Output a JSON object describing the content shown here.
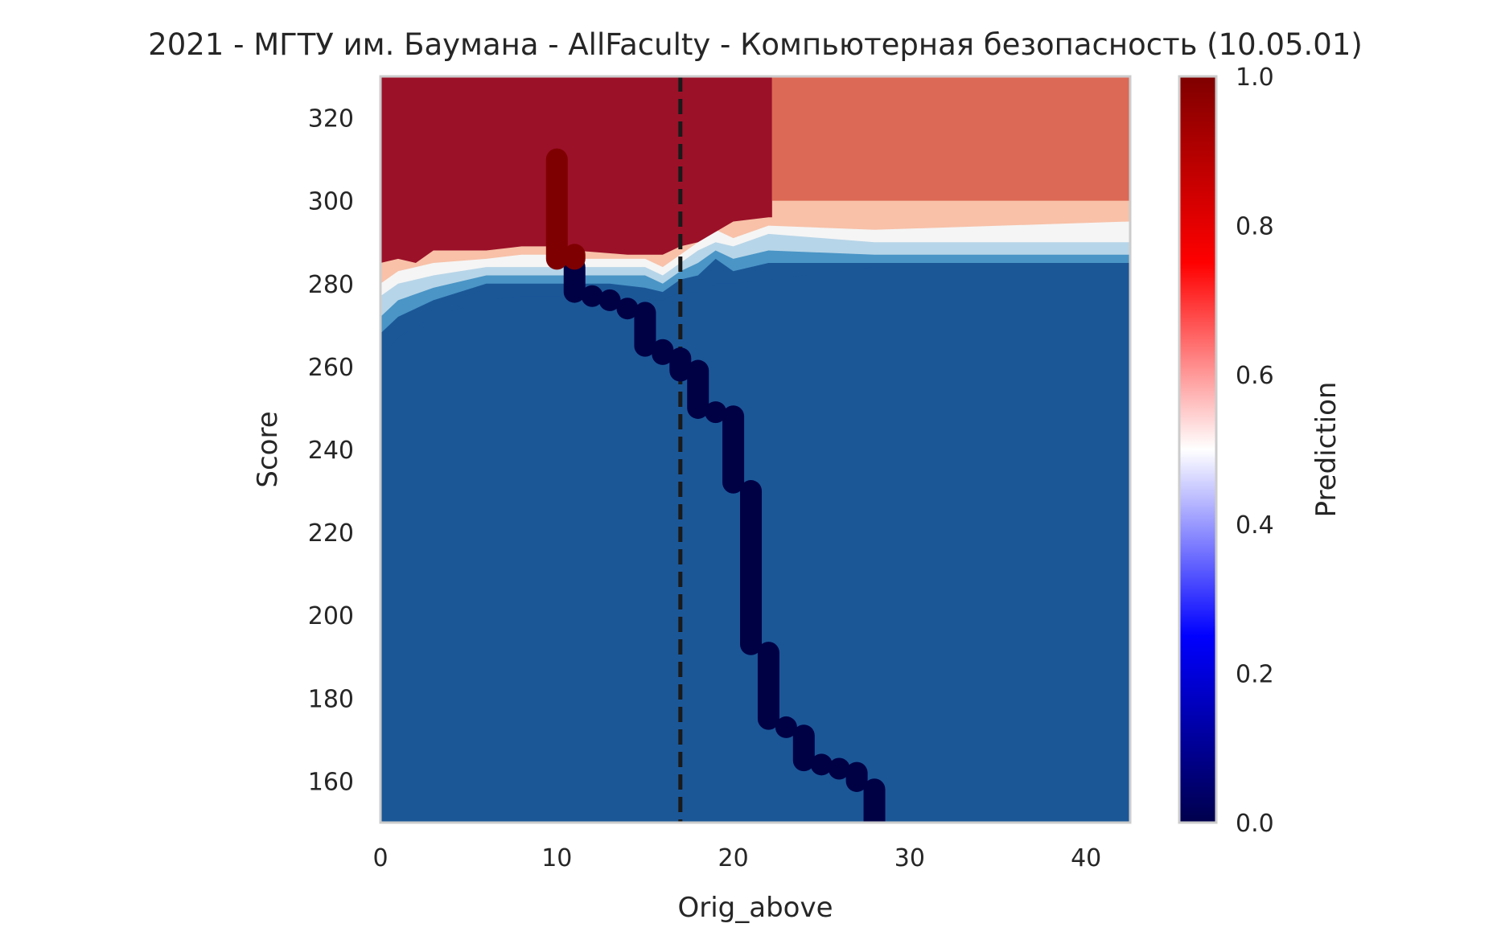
{
  "chart_data": {
    "type": "heatmap",
    "title": "2021 - МГТУ им. Баумана - AllFaculty - Компьютерная безопасность (10.05.01)",
    "xlabel": "Orig_above",
    "ylabel": "Score",
    "colorbar_label": "Prediction",
    "xlim": [
      0,
      42.5
    ],
    "ylim": [
      150,
      330
    ],
    "x_ticks": [
      0,
      10,
      20,
      30,
      40
    ],
    "y_ticks": [
      160,
      180,
      200,
      220,
      240,
      260,
      280,
      300,
      320
    ],
    "colorbar_ticks": [
      "0.0",
      "0.2",
      "0.4",
      "0.6",
      "0.8",
      "1.0"
    ],
    "colorbar_range": [
      0,
      1
    ],
    "grid": false,
    "dashed_line_x": 17,
    "colors": {
      "high": "#9b1128",
      "mid_high": "#dc6955",
      "light_red": "#f8c1a8",
      "white": "#f5f5f5",
      "light_blue": "#b7d5e8",
      "mid_blue": "#4a95c6",
      "low": "#1b5797",
      "point_admitted": "#7f0000",
      "point_rejected": "#000045"
    },
    "regions": [
      {
        "level": 0.95,
        "boundary": [
          [
            0,
            285
          ],
          [
            1,
            286
          ],
          [
            2,
            285
          ],
          [
            3,
            288
          ],
          [
            6,
            288
          ],
          [
            8,
            289
          ],
          [
            10,
            289
          ],
          [
            11,
            288
          ],
          [
            14,
            287
          ],
          [
            16,
            287
          ],
          [
            17,
            289
          ],
          [
            18,
            290
          ],
          [
            20,
            295
          ],
          [
            22,
            296
          ],
          [
            22.2,
            296
          ]
        ]
      },
      {
        "level": 0.8,
        "boundary": [
          [
            22.2,
            300
          ],
          [
            42.5,
            300
          ]
        ]
      },
      {
        "level": 0.65,
        "boundary": [
          [
            0,
            280
          ],
          [
            1,
            283
          ],
          [
            3,
            285
          ],
          [
            6,
            286
          ],
          [
            8,
            287
          ],
          [
            10,
            287
          ],
          [
            11,
            286
          ],
          [
            13,
            286
          ],
          [
            15,
            286
          ],
          [
            16,
            284
          ],
          [
            17,
            287
          ],
          [
            18,
            290
          ],
          [
            19,
            293
          ],
          [
            20,
            291
          ],
          [
            22,
            294
          ],
          [
            28,
            293
          ],
          [
            42.5,
            295
          ]
        ]
      },
      {
        "level": 0.55,
        "boundary": [
          [
            0,
            277
          ],
          [
            1,
            280
          ],
          [
            3,
            282
          ],
          [
            6,
            284
          ],
          [
            8,
            284
          ],
          [
            10,
            284
          ],
          [
            11,
            284
          ],
          [
            13,
            284
          ],
          [
            15,
            284
          ],
          [
            16,
            282
          ],
          [
            17,
            285
          ],
          [
            18,
            288
          ],
          [
            19,
            290
          ],
          [
            20,
            289
          ],
          [
            22,
            292
          ],
          [
            28,
            290
          ],
          [
            42.5,
            290
          ]
        ]
      },
      {
        "level": 0.45,
        "boundary": [
          [
            0,
            272
          ],
          [
            1,
            276
          ],
          [
            3,
            279
          ],
          [
            6,
            282
          ],
          [
            8,
            282
          ],
          [
            10,
            282
          ],
          [
            11,
            282
          ],
          [
            13,
            282
          ],
          [
            15,
            282
          ],
          [
            16,
            280
          ],
          [
            17,
            283
          ],
          [
            18,
            285
          ],
          [
            19,
            288
          ],
          [
            20,
            286
          ],
          [
            22,
            288
          ],
          [
            28,
            287
          ],
          [
            42.5,
            287
          ]
        ]
      },
      {
        "level": 0.35,
        "boundary": [
          [
            0,
            268
          ],
          [
            1,
            272
          ],
          [
            3,
            276
          ],
          [
            6,
            280
          ],
          [
            8,
            280
          ],
          [
            10,
            280
          ],
          [
            11,
            280
          ],
          [
            13,
            280
          ],
          [
            15,
            279
          ],
          [
            16,
            278
          ],
          [
            17,
            281
          ],
          [
            18,
            282
          ],
          [
            19,
            286
          ],
          [
            20,
            283
          ],
          [
            22,
            285
          ],
          [
            28,
            285
          ],
          [
            42.5,
            285
          ]
        ]
      },
      {
        "level": 0.2,
        "boundary": [
          [
            0,
            262
          ],
          [
            1,
            267
          ],
          [
            3,
            272
          ],
          [
            6,
            276
          ],
          [
            8,
            277
          ],
          [
            10,
            277
          ],
          [
            11,
            276
          ],
          [
            15,
            276
          ],
          [
            16,
            276
          ],
          [
            17,
            278
          ],
          [
            18,
            278
          ],
          [
            19,
            280
          ],
          [
            20,
            280
          ],
          [
            22,
            281
          ],
          [
            26,
            283
          ],
          [
            28,
            284
          ],
          [
            42.5,
            284
          ]
        ]
      }
    ],
    "points_admitted": [
      {
        "x": 10,
        "y": [
          286,
          310
        ]
      },
      {
        "x": 11,
        "y": [
          286,
          287
        ]
      }
    ],
    "points_rejected": [
      {
        "x": 11,
        "y": [
          278,
          284
        ]
      },
      {
        "x": 12,
        "y": [
          277,
          277
        ]
      },
      {
        "x": 13,
        "y": [
          276,
          276
        ]
      },
      {
        "x": 14,
        "y": [
          274,
          274
        ]
      },
      {
        "x": 15,
        "y": [
          265,
          273
        ]
      },
      {
        "x": 16,
        "y": [
          263,
          264
        ]
      },
      {
        "x": 17,
        "y": [
          259,
          262
        ]
      },
      {
        "x": 18,
        "y": [
          250,
          259
        ]
      },
      {
        "x": 19,
        "y": [
          249,
          249
        ]
      },
      {
        "x": 20,
        "y": [
          232,
          248
        ]
      },
      {
        "x": 21,
        "y": [
          193,
          230
        ]
      },
      {
        "x": 22,
        "y": [
          175,
          191
        ]
      },
      {
        "x": 23,
        "y": [
          173,
          173
        ]
      },
      {
        "x": 24,
        "y": [
          165,
          171
        ]
      },
      {
        "x": 25,
        "y": [
          164,
          164
        ]
      },
      {
        "x": 26,
        "y": [
          163,
          163
        ]
      },
      {
        "x": 27,
        "y": [
          160,
          162
        ]
      },
      {
        "x": 28,
        "y": [
          150,
          158
        ]
      }
    ]
  }
}
